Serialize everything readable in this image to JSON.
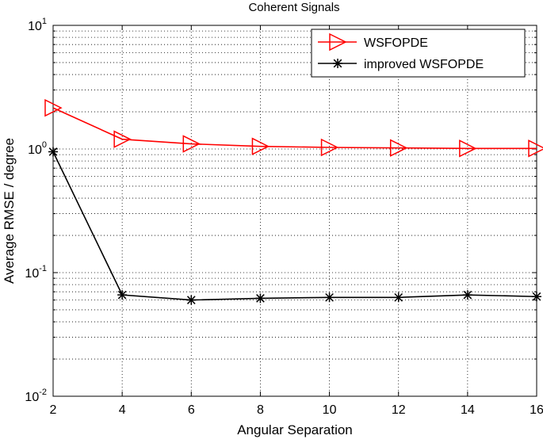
{
  "chart_data": {
    "type": "line",
    "title": "Coherent Signals",
    "xlabel": "Angular Separation",
    "ylabel": "Average RMSE / degree",
    "x": [
      2,
      4,
      6,
      8,
      10,
      12,
      14,
      16
    ],
    "xlim": [
      2,
      16
    ],
    "xticks": [
      "2",
      "4",
      "6",
      "8",
      "10",
      "12",
      "14",
      "16"
    ],
    "yscale": "log",
    "ylim": [
      0.01,
      10
    ],
    "yticks": [
      {
        "base": "10",
        "exp": "-2"
      },
      {
        "base": "10",
        "exp": "-1"
      },
      {
        "base": "10",
        "exp": "0"
      },
      {
        "base": "10",
        "exp": "1"
      }
    ],
    "grid": true,
    "legend_position": "top-right",
    "series": [
      {
        "name": "WSFOPDE",
        "color": "#ff0000",
        "marker": "triangle-right",
        "values": [
          2.15,
          1.2,
          1.1,
          1.05,
          1.03,
          1.02,
          1.01,
          1.01
        ]
      },
      {
        "name": "improved WSFOPDE",
        "color": "#000000",
        "marker": "asterisk",
        "values": [
          0.95,
          0.066,
          0.06,
          0.062,
          0.063,
          0.063,
          0.066,
          0.064
        ]
      }
    ]
  }
}
